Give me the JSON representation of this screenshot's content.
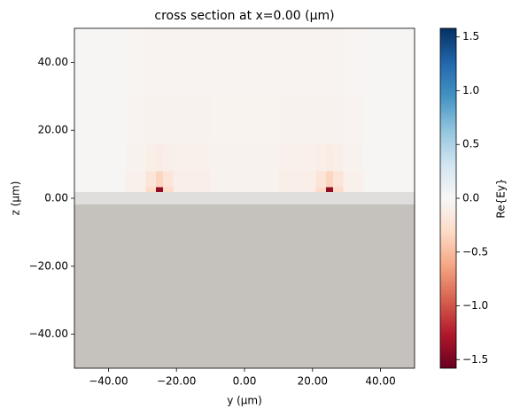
{
  "chart_data": {
    "type": "heatmap",
    "title": "cross section at x=0.00 (μm)",
    "x_label": "y (μm)",
    "y_label": "z (μm)",
    "colorbar_label": "Re{Ey}",
    "xlim": [
      -50,
      50
    ],
    "ylim": [
      -50,
      50
    ],
    "xticks": [
      {
        "value": -40,
        "label": "−40.00"
      },
      {
        "value": -20,
        "label": "−20.00"
      },
      {
        "value": 0,
        "label": "0.00"
      },
      {
        "value": 20,
        "label": "20.00"
      },
      {
        "value": 40,
        "label": "40.00"
      }
    ],
    "yticks": [
      {
        "value": -40,
        "label": "−40.00"
      },
      {
        "value": -20,
        "label": "−20.00"
      },
      {
        "value": 0,
        "label": "0.00"
      },
      {
        "value": 20,
        "label": "20.00"
      },
      {
        "value": 40,
        "label": "40.00"
      }
    ],
    "xbins": [
      -50,
      -35,
      -29,
      -26,
      -24,
      -21,
      -10,
      10,
      21,
      24,
      26,
      29,
      35,
      50
    ],
    "ybins": [
      1.8,
      3.2,
      8,
      16,
      30,
      50
    ],
    "values": [
      [
        -0.02,
        -0.08,
        -0.3,
        -1.4,
        -0.3,
        -0.1,
        -0.06,
        -0.1,
        -0.3,
        -1.4,
        -0.3,
        -0.08,
        -0.02
      ],
      [
        -0.02,
        -0.08,
        -0.2,
        -0.35,
        -0.2,
        -0.1,
        -0.06,
        -0.1,
        -0.2,
        -0.35,
        -0.2,
        -0.08,
        -0.02
      ],
      [
        -0.02,
        -0.06,
        -0.1,
        -0.12,
        -0.1,
        -0.08,
        -0.06,
        -0.08,
        -0.1,
        -0.12,
        -0.1,
        -0.06,
        -0.02
      ],
      [
        -0.02,
        -0.04,
        -0.06,
        -0.06,
        -0.06,
        -0.06,
        -0.05,
        -0.06,
        -0.06,
        -0.06,
        -0.06,
        -0.04,
        -0.02
      ],
      [
        -0.02,
        -0.03,
        -0.04,
        -0.04,
        -0.04,
        -0.04,
        -0.04,
        -0.04,
        -0.04,
        -0.04,
        -0.04,
        -0.03,
        -0.02
      ]
    ],
    "background": -0.01,
    "structures": [
      {
        "x": [
          -50,
          50
        ],
        "y": [
          -50,
          -1.8
        ],
        "color": "#c5c1bd"
      },
      {
        "x": [
          -50,
          50
        ],
        "y": [
          -1.8,
          1.8
        ],
        "color": "#e0dedc"
      }
    ],
    "clim": [
      -1.58,
      1.58
    ],
    "cticks": [
      {
        "value": -1.5,
        "label": "−1.5"
      },
      {
        "value": -1.0,
        "label": "−1.0"
      },
      {
        "value": -0.5,
        "label": "−0.5"
      },
      {
        "value": 0.0,
        "label": "0.0"
      },
      0.5,
      {
        "value": 1.0,
        "label": "1.0"
      },
      1.5
    ],
    "colormap": [
      "#67001f",
      "#b2182b",
      "#d6604d",
      "#f4a582",
      "#fddbc7",
      "#f7f7f7",
      "#d1e5f0",
      "#92c5de",
      "#4393c3",
      "#2166ac",
      "#053061"
    ]
  }
}
